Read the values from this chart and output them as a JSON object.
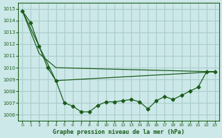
{
  "title": "Graphe pression niveau de la mer (hPa)",
  "background_color": "#cce8e8",
  "grid_color": "#aacccc",
  "line_color": "#1a5c1a",
  "ylim": [
    1005.5,
    1015.5
  ],
  "xlim": [
    -0.5,
    23.5
  ],
  "yticks": [
    1006,
    1007,
    1008,
    1009,
    1010,
    1011,
    1012,
    1013,
    1014,
    1015
  ],
  "xticks": [
    0,
    1,
    2,
    3,
    4,
    5,
    6,
    7,
    8,
    9,
    10,
    11,
    12,
    13,
    14,
    15,
    16,
    17,
    18,
    19,
    20,
    21,
    22,
    23
  ],
  "series1": {
    "x": [
      0,
      1,
      2,
      3,
      4,
      5,
      6,
      7,
      8,
      9,
      10,
      11,
      12,
      13,
      14,
      15,
      16,
      17,
      18,
      19,
      20,
      21,
      22,
      23
    ],
    "y": [
      1014.8,
      1013.8,
      1011.8,
      1010.0,
      1008.9,
      1007.0,
      1006.75,
      1006.25,
      1006.25,
      1006.8,
      1007.1,
      1007.1,
      1007.2,
      1007.3,
      1007.1,
      1006.5,
      1007.2,
      1007.55,
      1007.3,
      1007.65,
      1008.0,
      1008.35,
      1009.65,
      1009.65
    ]
  },
  "series2": {
    "x": [
      0,
      2,
      4,
      23
    ],
    "y": [
      1014.8,
      1011.8,
      1008.9,
      1009.65
    ]
  },
  "series3": {
    "x": [
      0,
      2,
      4,
      23
    ],
    "y": [
      1014.8,
      1011.2,
      1010.0,
      1009.65
    ]
  }
}
